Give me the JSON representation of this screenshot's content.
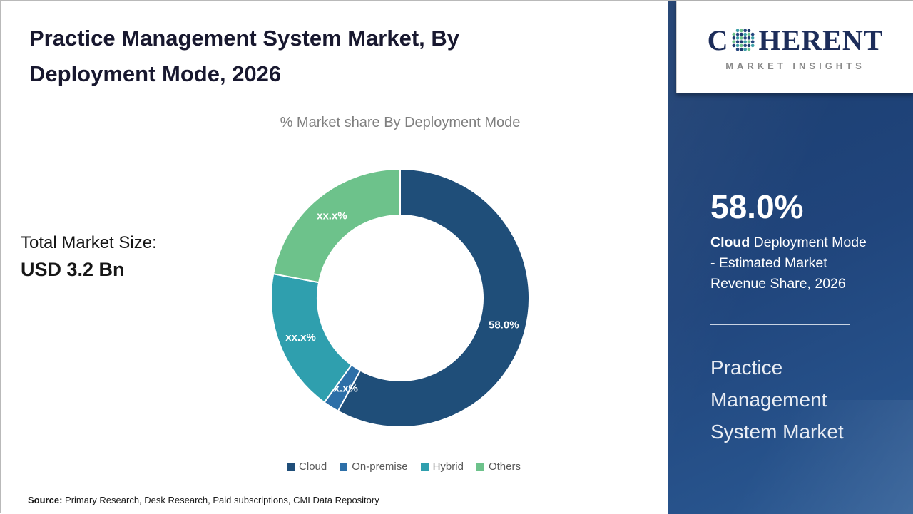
{
  "page": {
    "title": "Practice Management System Market, By Deployment Mode, 2026",
    "subtitle": "% Market share By Deployment Mode"
  },
  "totals": {
    "label": "Total Market Size:",
    "value": "USD 3.2 Bn"
  },
  "chart_data": {
    "type": "pie",
    "subtype": "donut",
    "title": "% Market share By Deployment Mode",
    "categories": [
      "Cloud",
      "On-premise",
      "Hybrid",
      "Others"
    ],
    "values": [
      58,
      2,
      18,
      22
    ],
    "labels": [
      "58.0%",
      "xx.x%",
      "xx.x%",
      "xx.x%"
    ],
    "colors": [
      "#1f4e79",
      "#2d6fa8",
      "#2f9fae",
      "#6dc28b"
    ],
    "legend_position": "bottom",
    "start_angle_deg": 0,
    "direction": "clockwise"
  },
  "sidebar": {
    "stat_value": "58.0%",
    "stat_desc_bold": "Cloud",
    "stat_desc_rest": " Deployment Mode - Estimated Market Revenue Share, 2026",
    "panel_title": "Practice Management System Market"
  },
  "logo": {
    "brand_prefix": "C",
    "brand_suffix": "HERENT",
    "tagline": "MARKET INSIGHTS"
  },
  "source": {
    "label": "Source:",
    "text": " Primary Research, Desk Research, Paid subscriptions, CMI Data Repository"
  }
}
